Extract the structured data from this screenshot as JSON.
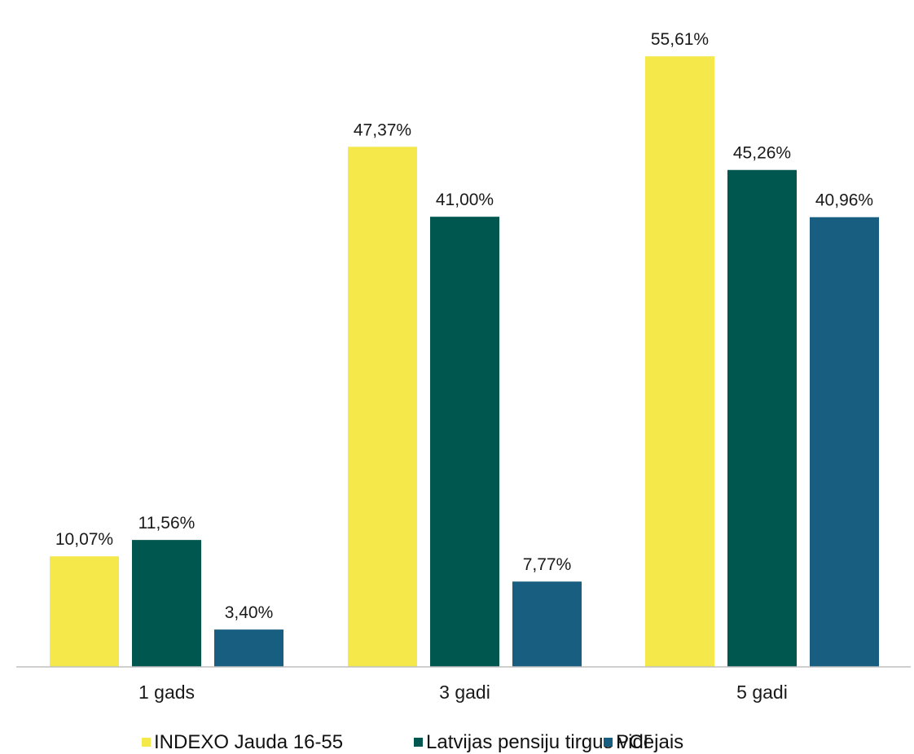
{
  "chart_data": {
    "type": "bar",
    "title": "",
    "xlabel": "",
    "ylabel": "",
    "ylim": [
      0,
      60
    ],
    "grid": false,
    "legend_position": "bottom",
    "categories": [
      "1 gads",
      "3 gadi",
      "5 gadi"
    ],
    "series": [
      {
        "name": "INDEXO Jauda 16-55",
        "color": "#f4e84a",
        "values": [
          10.07,
          47.37,
          55.61
        ],
        "labels": [
          "10,07%",
          "47,37%",
          "55,61%"
        ]
      },
      {
        "name": "Latvijas pensiju tirgus vidējais",
        "color": "#00574f",
        "values": [
          11.56,
          41.0,
          45.26
        ],
        "labels": [
          "11,56%",
          "41,00%",
          "45,26%"
        ]
      },
      {
        "name": "PCI",
        "color": "#175e80",
        "values": [
          3.4,
          7.77,
          40.96
        ],
        "labels": [
          "3,40%",
          "7,77%",
          "40,96%"
        ]
      }
    ],
    "axis_color": "#bfbfbf"
  }
}
